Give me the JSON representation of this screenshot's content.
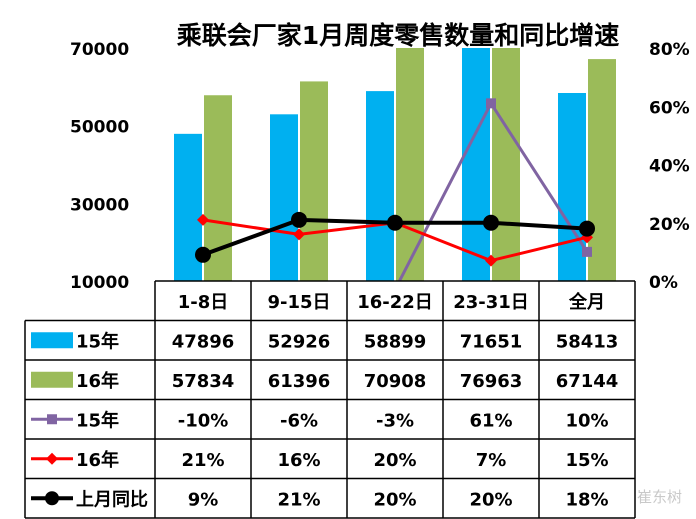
{
  "chart_data": {
    "type": "bar",
    "title": "乘联会厂家1月周度零售数量和同比增速",
    "categories": [
      "1-8日",
      "9-15日",
      "16-22日",
      "23-31日",
      "全月"
    ],
    "y_left": {
      "min": 10000,
      "max": 70000,
      "ticks": [
        "10000",
        "30000",
        "50000",
        "70000"
      ]
    },
    "y_right": {
      "min": 0,
      "max": 80,
      "ticks": [
        "0%",
        "20%",
        "40%",
        "60%",
        "80%"
      ]
    },
    "series": [
      {
        "name": "15年",
        "kind": "bar",
        "axis": "left",
        "color": "#00b0f0",
        "values": [
          47896,
          52926,
          58899,
          71651,
          58413
        ],
        "labels": [
          "47896",
          "52926",
          "58899",
          "71651",
          "58413"
        ]
      },
      {
        "name": "16年",
        "kind": "bar",
        "axis": "left",
        "color": "#9bbb59",
        "values": [
          57834,
          61396,
          70908,
          76963,
          67144
        ],
        "labels": [
          "57834",
          "61396",
          "70908",
          "76963",
          "67144"
        ]
      },
      {
        "name": "15年",
        "kind": "line",
        "axis": "right",
        "color": "#8064a2",
        "marker": "square",
        "values": [
          -10,
          -6,
          -3,
          61,
          10
        ],
        "labels": [
          "-10%",
          "-6%",
          "-3%",
          "61%",
          "10%"
        ]
      },
      {
        "name": "16年",
        "kind": "line",
        "axis": "right",
        "color": "#ff0000",
        "marker": "diamond",
        "values": [
          21,
          16,
          20,
          7,
          15
        ],
        "labels": [
          "21%",
          "16%",
          "20%",
          "7%",
          "15%"
        ]
      },
      {
        "name": "上月同比",
        "kind": "line",
        "axis": "right",
        "color": "#000000",
        "marker": "circle",
        "values": [
          9,
          21,
          20,
          20,
          18
        ],
        "labels": [
          "9%",
          "21%",
          "20%",
          "20%",
          "18%"
        ]
      }
    ]
  },
  "watermark": "崔东树"
}
